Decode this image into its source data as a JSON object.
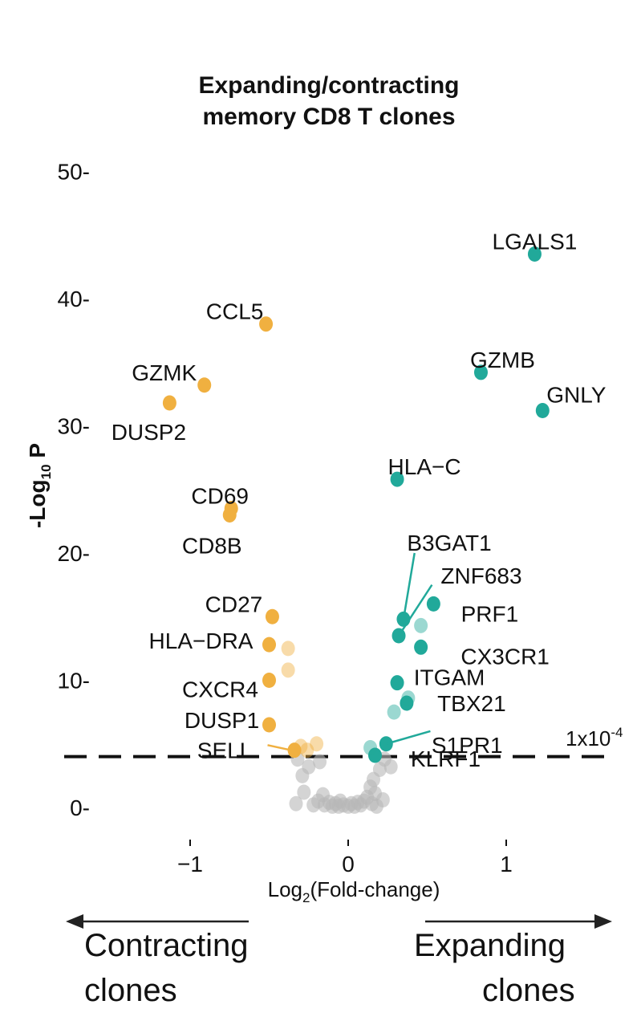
{
  "chart_data": {
    "type": "scatter",
    "title_line1": "Expanding/contracting",
    "title_line2": "memory CD8 T clones",
    "xlabel_prefix": "Log",
    "xlabel_sub": "2",
    "xlabel_suffix": "(Fold-change)",
    "ylabel_prefix": "-Log",
    "ylabel_sub": "10",
    "ylabel_suffix": " P",
    "xlim": [
      -1.0,
      1.0
    ],
    "ylim": [
      0,
      50
    ],
    "x_ticks": [
      {
        "value": -1,
        "label": "−1"
      },
      {
        "value": 0,
        "label": "0"
      },
      {
        "value": 1,
        "label": "1"
      }
    ],
    "y_ticks": [
      {
        "value": 0,
        "label": "0-"
      },
      {
        "value": 10,
        "label": "10-"
      },
      {
        "value": 20,
        "label": "20-"
      },
      {
        "value": 30,
        "label": "30-"
      },
      {
        "value": 40,
        "label": "40-"
      },
      {
        "value": 50,
        "label": "50-"
      }
    ],
    "threshold": {
      "value": 4,
      "label_base": "1x10",
      "label_exp": "-4"
    },
    "colors": {
      "down": "#F0B040",
      "up": "#21A99A",
      "ns": "#B8B8B8"
    },
    "series": [
      {
        "key": "down",
        "points": [
          {
            "x": -0.52,
            "y": 38.0,
            "label": "CCL5"
          },
          {
            "x": -0.91,
            "y": 33.2,
            "label": "GZMK"
          },
          {
            "x": -1.13,
            "y": 31.8,
            "label": "DUSP2"
          },
          {
            "x": -0.74,
            "y": 23.5,
            "label": "CD69"
          },
          {
            "x": -0.75,
            "y": 23.0,
            "label": "CD8B"
          },
          {
            "x": -0.48,
            "y": 15.0,
            "label": "CD27"
          },
          {
            "x": -0.5,
            "y": 12.8,
            "label": "HLA−DRA"
          },
          {
            "x": -0.5,
            "y": 10.0,
            "label": "CXCR4"
          },
          {
            "x": -0.5,
            "y": 6.5,
            "label": "DUSP1"
          },
          {
            "x": -0.34,
            "y": 4.5,
            "label": "SELL"
          },
          {
            "x": -0.38,
            "y": 12.5,
            "faint": true
          },
          {
            "x": -0.38,
            "y": 10.8,
            "faint": true
          },
          {
            "x": -0.3,
            "y": 4.8,
            "faint": true
          },
          {
            "x": -0.26,
            "y": 4.5,
            "faint": true
          },
          {
            "x": -0.2,
            "y": 5.0,
            "faint": true
          }
        ]
      },
      {
        "key": "up",
        "points": [
          {
            "x": 1.18,
            "y": 43.5,
            "label": "LGALS1"
          },
          {
            "x": 0.84,
            "y": 34.2,
            "label": "GZMB"
          },
          {
            "x": 1.23,
            "y": 31.2,
            "label": "GNLY"
          },
          {
            "x": 0.31,
            "y": 25.8,
            "label": "HLA−C"
          },
          {
            "x": 0.35,
            "y": 14.8,
            "label": "B3GAT1"
          },
          {
            "x": 0.32,
            "y": 13.5,
            "label": "ZNF683"
          },
          {
            "x": 0.54,
            "y": 16.0,
            "label": "PRF1"
          },
          {
            "x": 0.46,
            "y": 12.6,
            "label": "CX3CR1"
          },
          {
            "x": 0.31,
            "y": 9.8,
            "label": "ITGAM"
          },
          {
            "x": 0.37,
            "y": 8.2,
            "label": "TBX21"
          },
          {
            "x": 0.24,
            "y": 5.0,
            "label": "S1PR1"
          },
          {
            "x": 0.17,
            "y": 4.1,
            "label": "KLRF1"
          },
          {
            "x": 0.46,
            "y": 14.3,
            "faint": true
          },
          {
            "x": 0.38,
            "y": 8.6,
            "faint": true
          },
          {
            "x": 0.29,
            "y": 7.5,
            "faint": true
          },
          {
            "x": 0.14,
            "y": 4.7,
            "faint": true
          }
        ]
      },
      {
        "key": "ns",
        "points": [
          {
            "x": -0.32,
            "y": 3.8
          },
          {
            "x": -0.29,
            "y": 2.5
          },
          {
            "x": -0.25,
            "y": 3.2
          },
          {
            "x": -0.18,
            "y": 3.6
          },
          {
            "x": -0.33,
            "y": 0.3
          },
          {
            "x": -0.28,
            "y": 1.2
          },
          {
            "x": -0.19,
            "y": 0.5
          },
          {
            "x": -0.15,
            "y": 0.2
          },
          {
            "x": -0.16,
            "y": 1.0
          },
          {
            "x": -0.12,
            "y": 0.4
          },
          {
            "x": -0.1,
            "y": 0.1
          },
          {
            "x": -0.08,
            "y": 0.3
          },
          {
            "x": -0.06,
            "y": 0.1
          },
          {
            "x": -0.05,
            "y": 0.5
          },
          {
            "x": -0.03,
            "y": 0.2
          },
          {
            "x": 0.0,
            "y": 0.1
          },
          {
            "x": 0.02,
            "y": 0.3
          },
          {
            "x": 0.04,
            "y": 0.1
          },
          {
            "x": 0.06,
            "y": 0.4
          },
          {
            "x": 0.08,
            "y": 0.2
          },
          {
            "x": 0.1,
            "y": 0.5
          },
          {
            "x": 0.12,
            "y": 0.8
          },
          {
            "x": 0.14,
            "y": 1.6
          },
          {
            "x": 0.15,
            "y": 0.3
          },
          {
            "x": 0.16,
            "y": 2.2
          },
          {
            "x": 0.17,
            "y": 1.1
          },
          {
            "x": 0.2,
            "y": 3.0
          },
          {
            "x": 0.23,
            "y": 3.8
          },
          {
            "x": 0.27,
            "y": 3.2
          },
          {
            "x": 0.18,
            "y": 0.1
          },
          {
            "x": -0.22,
            "y": 0.2
          },
          {
            "x": 0.22,
            "y": 0.6
          }
        ]
      }
    ],
    "callouts": [
      {
        "label": "B3GAT1",
        "from": [
          0.42,
          20.0
        ],
        "to": [
          0.35,
          14.8
        ]
      },
      {
        "label": "ZNF683",
        "from": [
          0.53,
          17.5
        ],
        "to": [
          0.32,
          13.5
        ]
      },
      {
        "label": "S1PR1",
        "from": [
          0.52,
          6.0
        ],
        "to": [
          0.24,
          5.0
        ]
      },
      {
        "label": "SELL",
        "from": [
          -0.51,
          4.9
        ],
        "to": [
          -0.36,
          4.5
        ]
      }
    ]
  },
  "annotations": {
    "left_arrow_line1": "Contracting",
    "left_arrow_line2": "clones",
    "right_arrow_line1": "Expanding",
    "right_arrow_line2": "clones"
  }
}
